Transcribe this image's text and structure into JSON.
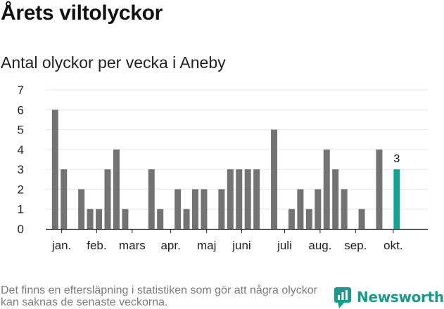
{
  "header": {
    "title": "Årets viltolyckor",
    "subtitle": "Antal olyckor per vecka i Aneby"
  },
  "footer": {
    "note": "Det finns en eftersläpning i statistiken som gör att några olyckor kan saknas de senaste veckorna.",
    "brand": "Newsworthy"
  },
  "colors": {
    "bar": "#737373",
    "highlight": "#16a394",
    "brand": "#1a9a8c",
    "grid": "#e6e6e6",
    "axis": "#222222"
  },
  "chart_data": {
    "type": "bar",
    "title": "Antal olyckor per vecka i Aneby",
    "xlabel": "",
    "ylabel": "",
    "ylim": [
      0,
      7
    ],
    "yticks": [
      "0",
      "1",
      "2",
      "3",
      "4",
      "5",
      "6",
      "7"
    ],
    "grid": true,
    "x": [
      1,
      2,
      3,
      4,
      5,
      6,
      7,
      8,
      9,
      10,
      11,
      12,
      13,
      14,
      15,
      16,
      17,
      18,
      19,
      20,
      21,
      22,
      23,
      24,
      25,
      26,
      27,
      28,
      29,
      30,
      31,
      32,
      33,
      34,
      35,
      36,
      37,
      38,
      39,
      40,
      41
    ],
    "values": [
      6,
      3,
      0,
      2,
      1,
      1,
      3,
      4,
      1,
      0,
      0,
      3,
      1,
      0,
      2,
      1,
      2,
      2,
      0,
      2,
      3,
      3,
      3,
      3,
      0,
      5,
      0,
      1,
      2,
      1,
      2,
      4,
      3,
      2,
      0,
      1,
      0,
      4,
      0,
      3,
      0
    ],
    "highlight_index": 39,
    "highlight_label": "3",
    "month_labels": [
      {
        "label": "jan.",
        "week": 1.75
      },
      {
        "label": "feb.",
        "week": 5.75
      },
      {
        "label": "mars",
        "week": 9.8
      },
      {
        "label": "apr.",
        "week": 14.2
      },
      {
        "label": "maj",
        "week": 18.3
      },
      {
        "label": "juni",
        "week": 22.3
      },
      {
        "label": "juli",
        "week": 27.2
      },
      {
        "label": "aug.",
        "week": 31.25
      },
      {
        "label": "sep.",
        "week": 35.3
      },
      {
        "label": "okt.",
        "week": 39.6
      }
    ]
  }
}
